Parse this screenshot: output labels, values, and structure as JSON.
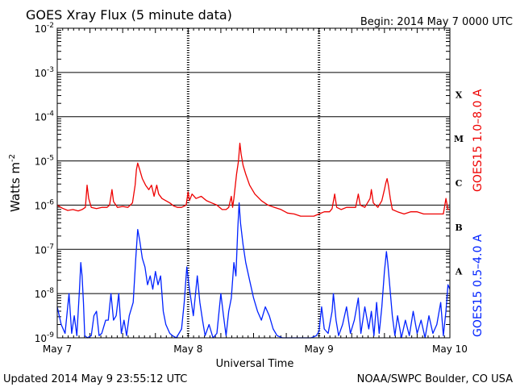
{
  "chart_data": {
    "type": "line",
    "title": "GOES Xray Flux (5 minute data)",
    "begin_label": "Begin:  2014 May 7 0000 UTC",
    "xlabel": "Universal Time",
    "ylabel_base": "Watts m",
    "ylabel_exp": "-2",
    "x_ticks": [
      "May 7",
      "May 8",
      "May 9",
      "May 10"
    ],
    "x_range_days": [
      0,
      3
    ],
    "y_scale": "log",
    "y_tick_labels": [
      {
        "base": "10",
        "exp": "-9"
      },
      {
        "base": "10",
        "exp": "-8"
      },
      {
        "base": "10",
        "exp": "-7"
      },
      {
        "base": "10",
        "exp": "-6"
      },
      {
        "base": "10",
        "exp": "-5"
      },
      {
        "base": "10",
        "exp": "-4"
      },
      {
        "base": "10",
        "exp": "-3"
      },
      {
        "base": "10",
        "exp": "-2"
      }
    ],
    "ylim_exp": [
      -9,
      -2
    ],
    "flare_classes": [
      {
        "label": "A",
        "exp": -8
      },
      {
        "label": "B",
        "exp": -7
      },
      {
        "label": "C",
        "exp": -6
      },
      {
        "label": "M",
        "exp": -5
      },
      {
        "label": "X",
        "exp": -4
      }
    ],
    "series": [
      {
        "name": "GOES15 1.0–8.0 A",
        "color": "#ee0000",
        "points": [
          [
            0.0,
            -6.0
          ],
          [
            0.04,
            -6.07
          ],
          [
            0.08,
            -6.12
          ],
          [
            0.12,
            -6.1
          ],
          [
            0.16,
            -6.13
          ],
          [
            0.19,
            -6.1
          ],
          [
            0.215,
            -6.05
          ],
          [
            0.228,
            -5.55
          ],
          [
            0.24,
            -5.85
          ],
          [
            0.26,
            -6.05
          ],
          [
            0.3,
            -6.08
          ],
          [
            0.34,
            -6.05
          ],
          [
            0.38,
            -6.05
          ],
          [
            0.4,
            -6.0
          ],
          [
            0.418,
            -5.65
          ],
          [
            0.43,
            -5.92
          ],
          [
            0.46,
            -6.05
          ],
          [
            0.5,
            -6.03
          ],
          [
            0.54,
            -6.05
          ],
          [
            0.575,
            -5.95
          ],
          [
            0.595,
            -5.55
          ],
          [
            0.605,
            -5.2
          ],
          [
            0.615,
            -5.05
          ],
          [
            0.63,
            -5.2
          ],
          [
            0.65,
            -5.4
          ],
          [
            0.675,
            -5.55
          ],
          [
            0.7,
            -5.65
          ],
          [
            0.72,
            -5.55
          ],
          [
            0.74,
            -5.8
          ],
          [
            0.76,
            -5.55
          ],
          [
            0.775,
            -5.75
          ],
          [
            0.8,
            -5.85
          ],
          [
            0.83,
            -5.9
          ],
          [
            0.86,
            -5.95
          ],
          [
            0.89,
            -6.02
          ],
          [
            0.92,
            -6.05
          ],
          [
            0.95,
            -6.05
          ],
          [
            0.985,
            -6.0
          ],
          [
            1.0,
            -5.7
          ],
          [
            1.01,
            -5.9
          ],
          [
            1.03,
            -5.75
          ],
          [
            1.06,
            -5.85
          ],
          [
            1.1,
            -5.8
          ],
          [
            1.14,
            -5.9
          ],
          [
            1.18,
            -5.95
          ],
          [
            1.22,
            -6.0
          ],
          [
            1.26,
            -6.1
          ],
          [
            1.29,
            -6.1
          ],
          [
            1.31,
            -6.05
          ],
          [
            1.33,
            -5.8
          ],
          [
            1.34,
            -6.05
          ],
          [
            1.35,
            -5.85
          ],
          [
            1.37,
            -5.3
          ],
          [
            1.385,
            -5.0
          ],
          [
            1.395,
            -4.6
          ],
          [
            1.405,
            -4.85
          ],
          [
            1.42,
            -5.1
          ],
          [
            1.44,
            -5.3
          ],
          [
            1.47,
            -5.55
          ],
          [
            1.51,
            -5.75
          ],
          [
            1.56,
            -5.9
          ],
          [
            1.61,
            -6.0
          ],
          [
            1.66,
            -6.05
          ],
          [
            1.71,
            -6.1
          ],
          [
            1.76,
            -6.18
          ],
          [
            1.81,
            -6.2
          ],
          [
            1.86,
            -6.25
          ],
          [
            1.91,
            -6.25
          ],
          [
            1.96,
            -6.25
          ],
          [
            2.0,
            -6.2
          ],
          [
            2.04,
            -6.15
          ],
          [
            2.08,
            -6.15
          ],
          [
            2.1,
            -6.08
          ],
          [
            2.12,
            -5.75
          ],
          [
            2.135,
            -6.05
          ],
          [
            2.17,
            -6.1
          ],
          [
            2.21,
            -6.05
          ],
          [
            2.25,
            -6.05
          ],
          [
            2.28,
            -6.05
          ],
          [
            2.3,
            -5.75
          ],
          [
            2.315,
            -6.0
          ],
          [
            2.35,
            -6.05
          ],
          [
            2.39,
            -5.85
          ],
          [
            2.4,
            -5.65
          ],
          [
            2.415,
            -5.95
          ],
          [
            2.45,
            -6.05
          ],
          [
            2.48,
            -5.9
          ],
          [
            2.5,
            -5.65
          ],
          [
            2.51,
            -5.5
          ],
          [
            2.52,
            -5.4
          ],
          [
            2.53,
            -5.55
          ],
          [
            2.545,
            -5.85
          ],
          [
            2.56,
            -6.1
          ],
          [
            2.6,
            -6.15
          ],
          [
            2.65,
            -6.2
          ],
          [
            2.7,
            -6.15
          ],
          [
            2.75,
            -6.15
          ],
          [
            2.8,
            -6.2
          ],
          [
            2.85,
            -6.2
          ],
          [
            2.9,
            -6.2
          ],
          [
            2.95,
            -6.2
          ],
          [
            2.97,
            -5.85
          ],
          [
            2.985,
            -6.1
          ],
          [
            3.0,
            -6.1
          ]
        ]
      },
      {
        "name": "GOES15 0.5–4.0 A",
        "color": "#0022ff",
        "points": [
          [
            0.0,
            -8.3
          ],
          [
            0.03,
            -8.7
          ],
          [
            0.06,
            -8.9
          ],
          [
            0.09,
            -8.0
          ],
          [
            0.11,
            -8.9
          ],
          [
            0.13,
            -8.5
          ],
          [
            0.15,
            -8.95
          ],
          [
            0.17,
            -7.9
          ],
          [
            0.18,
            -7.3
          ],
          [
            0.19,
            -7.6
          ],
          [
            0.2,
            -8.2
          ],
          [
            0.21,
            -8.95
          ],
          [
            0.23,
            -9.0
          ],
          [
            0.26,
            -8.95
          ],
          [
            0.28,
            -8.5
          ],
          [
            0.3,
            -8.4
          ],
          [
            0.32,
            -8.95
          ],
          [
            0.34,
            -8.9
          ],
          [
            0.37,
            -8.6
          ],
          [
            0.39,
            -8.6
          ],
          [
            0.41,
            -8.0
          ],
          [
            0.43,
            -8.6
          ],
          [
            0.45,
            -8.5
          ],
          [
            0.47,
            -8.0
          ],
          [
            0.49,
            -8.9
          ],
          [
            0.51,
            -8.6
          ],
          [
            0.53,
            -8.95
          ],
          [
            0.55,
            -8.5
          ],
          [
            0.58,
            -8.2
          ],
          [
            0.6,
            -7.2
          ],
          [
            0.615,
            -6.55
          ],
          [
            0.63,
            -6.8
          ],
          [
            0.65,
            -7.2
          ],
          [
            0.67,
            -7.4
          ],
          [
            0.69,
            -7.8
          ],
          [
            0.71,
            -7.6
          ],
          [
            0.73,
            -7.9
          ],
          [
            0.75,
            -7.5
          ],
          [
            0.77,
            -7.8
          ],
          [
            0.79,
            -7.6
          ],
          [
            0.81,
            -8.4
          ],
          [
            0.83,
            -8.7
          ],
          [
            0.86,
            -8.9
          ],
          [
            0.88,
            -8.95
          ],
          [
            0.91,
            -9.0
          ],
          [
            0.95,
            -8.8
          ],
          [
            0.97,
            -8.2
          ],
          [
            0.99,
            -7.4
          ],
          [
            1.01,
            -7.9
          ],
          [
            1.04,
            -8.5
          ],
          [
            1.07,
            -7.6
          ],
          [
            1.09,
            -8.2
          ],
          [
            1.11,
            -8.6
          ],
          [
            1.13,
            -8.95
          ],
          [
            1.16,
            -8.7
          ],
          [
            1.19,
            -9.0
          ],
          [
            1.22,
            -8.9
          ],
          [
            1.25,
            -8.0
          ],
          [
            1.27,
            -8.5
          ],
          [
            1.29,
            -8.95
          ],
          [
            1.31,
            -8.4
          ],
          [
            1.33,
            -8.1
          ],
          [
            1.35,
            -7.3
          ],
          [
            1.365,
            -7.6
          ],
          [
            1.38,
            -6.5
          ],
          [
            1.39,
            -5.95
          ],
          [
            1.4,
            -6.4
          ],
          [
            1.42,
            -6.9
          ],
          [
            1.44,
            -7.3
          ],
          [
            1.47,
            -7.7
          ],
          [
            1.5,
            -8.1
          ],
          [
            1.53,
            -8.4
          ],
          [
            1.56,
            -8.6
          ],
          [
            1.59,
            -8.3
          ],
          [
            1.62,
            -8.5
          ],
          [
            1.65,
            -8.8
          ],
          [
            1.68,
            -8.95
          ],
          [
            1.72,
            -9.0
          ],
          [
            1.78,
            -9.0
          ],
          [
            1.86,
            -9.0
          ],
          [
            1.94,
            -9.0
          ],
          [
            1.98,
            -8.95
          ],
          [
            2.0,
            -8.85
          ],
          [
            2.02,
            -8.3
          ],
          [
            2.04,
            -8.8
          ],
          [
            2.07,
            -8.9
          ],
          [
            2.1,
            -8.4
          ],
          [
            2.11,
            -8.0
          ],
          [
            2.13,
            -8.6
          ],
          [
            2.15,
            -8.95
          ],
          [
            2.18,
            -8.7
          ],
          [
            2.21,
            -8.3
          ],
          [
            2.24,
            -8.9
          ],
          [
            2.27,
            -8.6
          ],
          [
            2.3,
            -8.1
          ],
          [
            2.32,
            -8.9
          ],
          [
            2.35,
            -8.3
          ],
          [
            2.38,
            -8.8
          ],
          [
            2.4,
            -8.4
          ],
          [
            2.42,
            -8.95
          ],
          [
            2.44,
            -8.2
          ],
          [
            2.46,
            -8.9
          ],
          [
            2.48,
            -8.3
          ],
          [
            2.5,
            -7.5
          ],
          [
            2.515,
            -7.05
          ],
          [
            2.525,
            -7.3
          ],
          [
            2.54,
            -7.8
          ],
          [
            2.56,
            -8.5
          ],
          [
            2.58,
            -8.95
          ],
          [
            2.6,
            -8.5
          ],
          [
            2.63,
            -9.0
          ],
          [
            2.66,
            -8.6
          ],
          [
            2.69,
            -8.95
          ],
          [
            2.72,
            -8.4
          ],
          [
            2.75,
            -8.9
          ],
          [
            2.78,
            -8.6
          ],
          [
            2.81,
            -9.0
          ],
          [
            2.84,
            -8.5
          ],
          [
            2.87,
            -8.9
          ],
          [
            2.9,
            -8.7
          ],
          [
            2.93,
            -8.2
          ],
          [
            2.95,
            -8.95
          ],
          [
            2.97,
            -8.4
          ],
          [
            2.985,
            -7.8
          ],
          [
            3.0,
            -7.9
          ]
        ]
      }
    ]
  },
  "footer": {
    "updated": "Updated 2014 May  9 23:55:12 UTC",
    "credit": "NOAA/SWPC Boulder, CO USA"
  }
}
